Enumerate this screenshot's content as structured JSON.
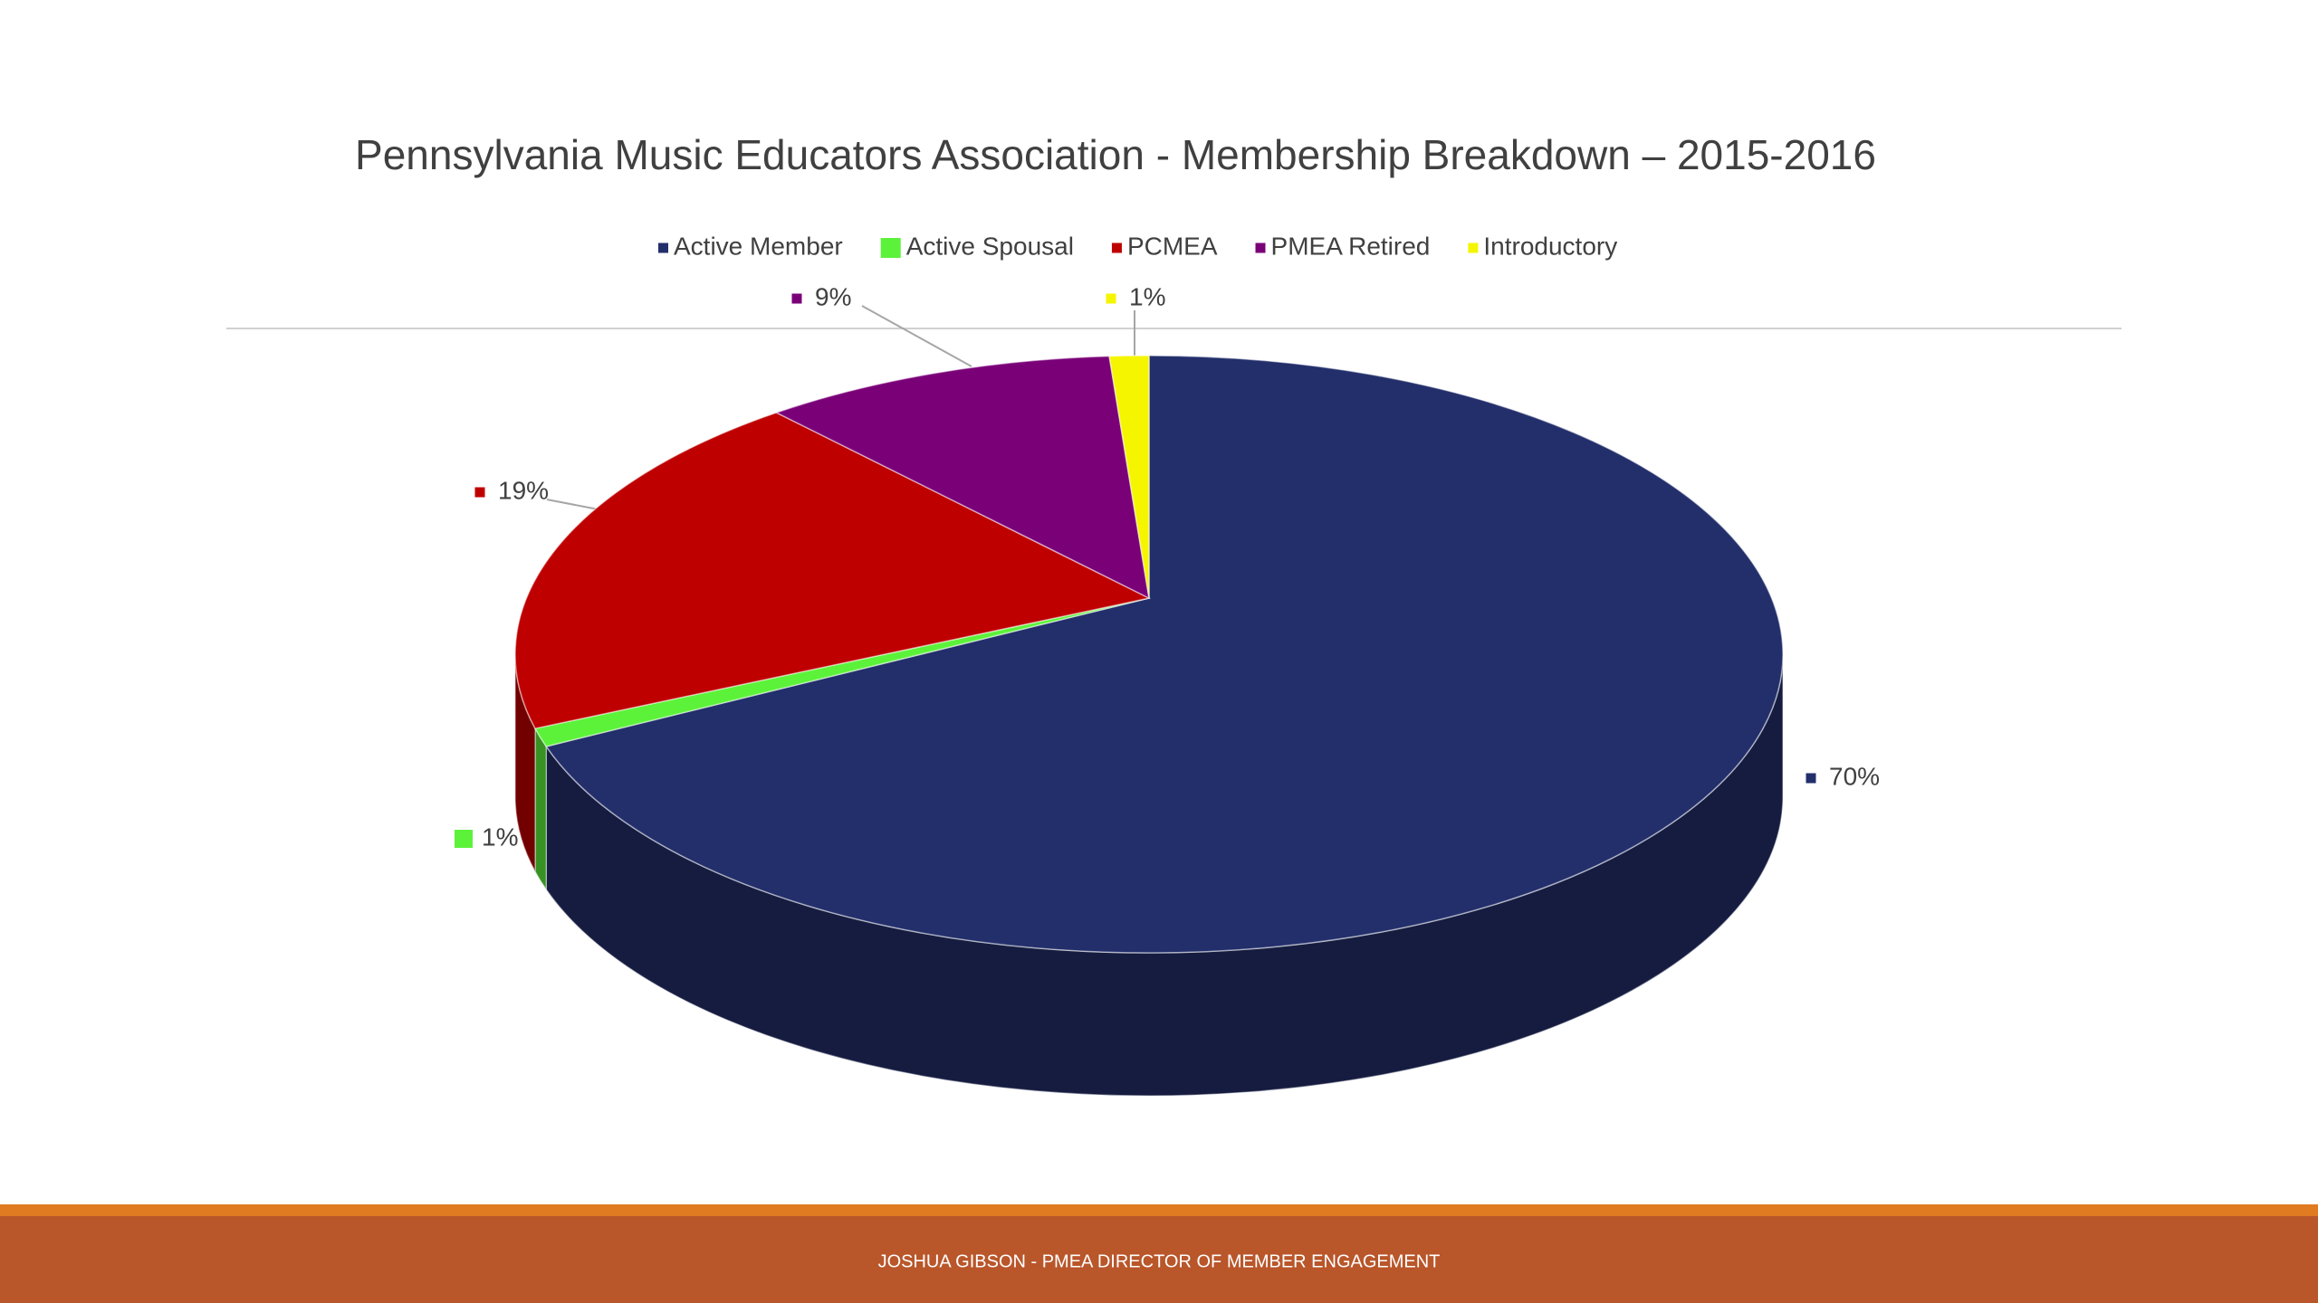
{
  "chart_data": {
    "type": "pie3d",
    "title": "Pennsylvania Music Educators Association - Membership Breakdown – 2015-2016",
    "categories": [
      "Active Member",
      "Active Spousal",
      "PCMEA",
      "PMEA Retired",
      "Introductory"
    ],
    "values": [
      70,
      1,
      19,
      9,
      1
    ],
    "value_labels": [
      "70%",
      "1%",
      "19%",
      "9%",
      "1%"
    ],
    "colors": [
      "#232f6b",
      "#5cf23a",
      "#bf0000",
      "#7a0078",
      "#f5f500"
    ],
    "legend": "top"
  },
  "footer": "JOSHUA GIBSON - PMEA DIRECTOR OF MEMBER ENGAGEMENT"
}
